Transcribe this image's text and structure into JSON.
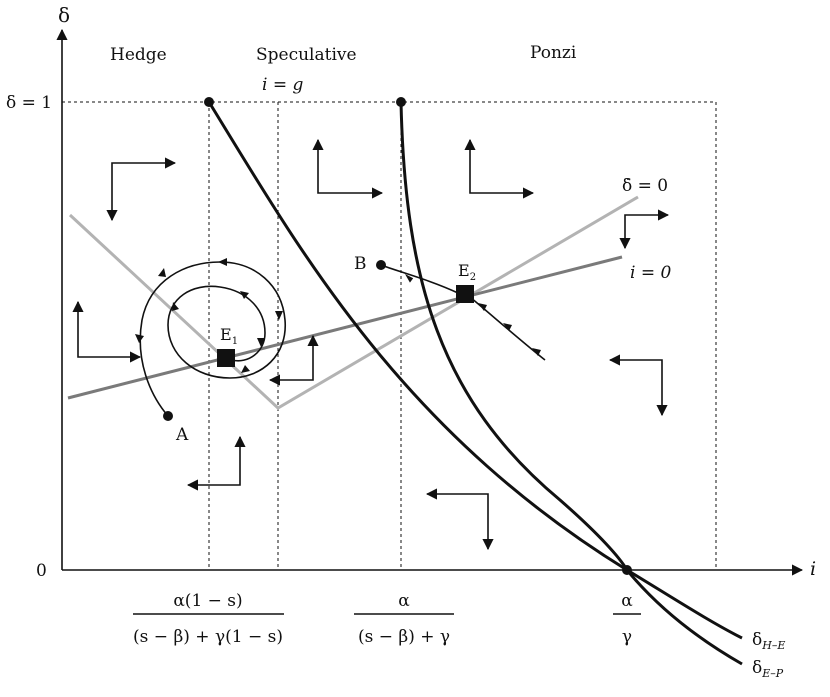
{
  "axes": {
    "y_label": "δ",
    "x_label": "i",
    "y_one_label": "δ = 1",
    "origin_label": "0"
  },
  "regions": {
    "hedge": "Hedge",
    "speculative": "Speculative",
    "ponzi": "Ponzi"
  },
  "line_labels": {
    "i_eq_g": "i = g",
    "delta_dot_zero": "δ̇ = 0",
    "i_eq_zero": "i = 0",
    "delta_HE": "δ",
    "delta_HE_sub": "H–E",
    "delta_EP": "δ",
    "delta_EP_sub": "E–P"
  },
  "points": {
    "A": "A",
    "B": "B",
    "E1": "E",
    "E1_sub": "1",
    "E2": "E",
    "E2_sub": "2"
  },
  "x_ticks": {
    "t1_num": "α(1 − s)",
    "t1_den": "(s − β) + γ(1 − s)",
    "t2_num": "α",
    "t2_den": "(s − β) + γ",
    "t3_num": "α",
    "t3_den": "γ"
  },
  "colors": {
    "ink": "#111111",
    "light_gray": "#b3b3b3",
    "mid_gray": "#7a7a7a"
  }
}
